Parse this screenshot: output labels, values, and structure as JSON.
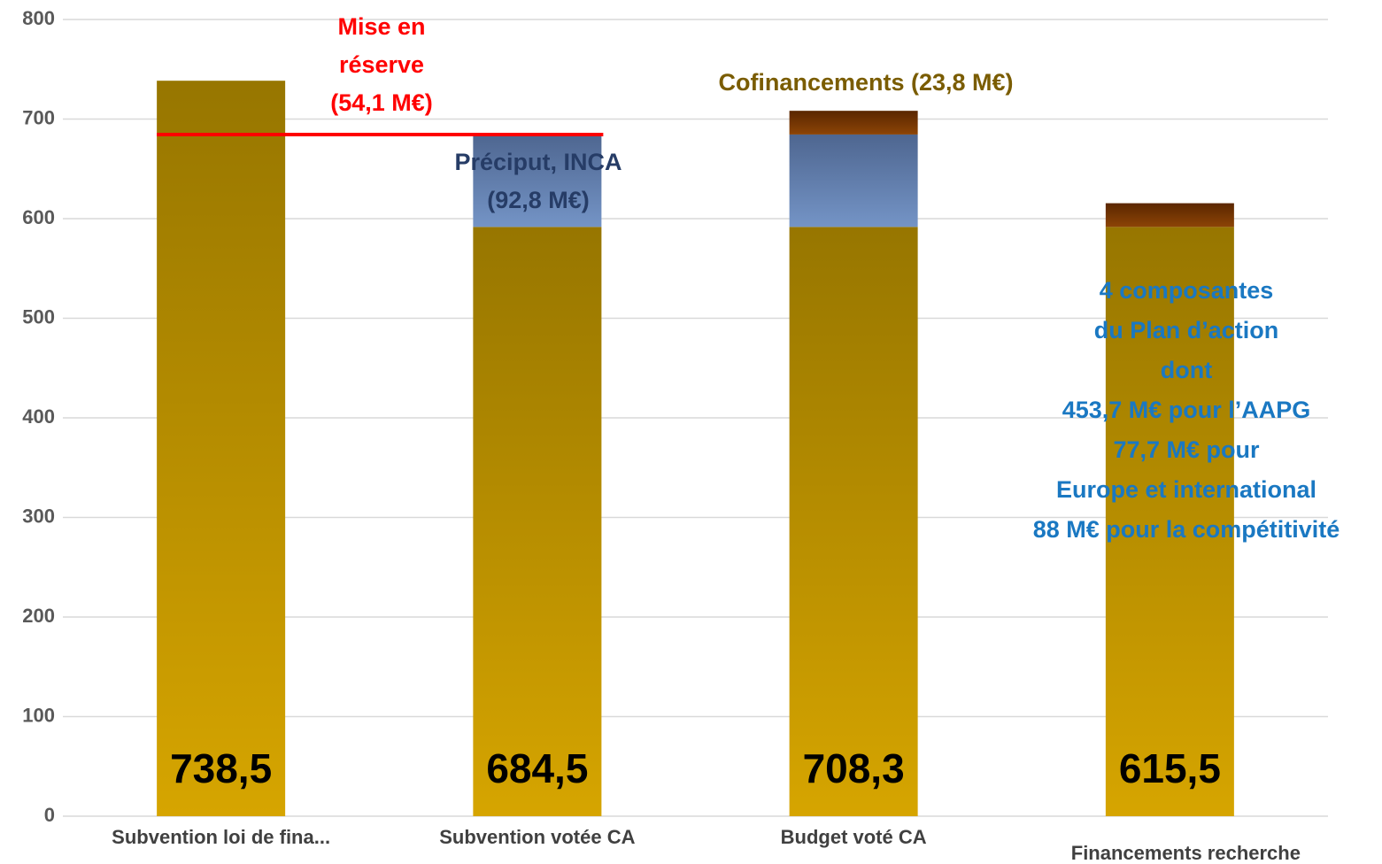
{
  "chart_data": {
    "type": "stacked-bar",
    "categories": [
      "Subvention loi de fina...",
      "Subvention votée CA",
      "Budget voté CA",
      "Financements recherche"
    ],
    "series": [
      {
        "color": "#b08c00",
        "values": [
          738.5,
          591.7,
          591.7,
          591.7
        ]
      },
      {
        "color": "#6482b4",
        "values": [
          null,
          92.8,
          92.8,
          null
        ]
      },
      {
        "color": "#7a3a05",
        "values": [
          null,
          null,
          23.8,
          23.8
        ]
      }
    ],
    "totals": [
      738.5,
      684.5,
      708.3,
      615.5
    ],
    "total_labels": [
      "738,5",
      "684,5",
      "708,3",
      "615,5"
    ],
    "reserve_line": {
      "value": 684.4,
      "color": "#ff0000"
    },
    "annotations": [
      {
        "lines": [
          "Mise en",
          "réserve",
          "(54,1 M€)"
        ],
        "color": "#ff0000"
      },
      {
        "lines": [
          "Préciput, INCA",
          "(92,8 M€)"
        ],
        "color": "#263c66"
      },
      {
        "lines": [
          "Cofinancements (23,8 M€)"
        ],
        "color": "#7a5c00"
      },
      {
        "lines": [
          "4 composantes",
          "du Plan d’action",
          "dont",
          "453,7 M€ pour l’AAPG",
          "77,7 M€ pour",
          "Europe et international",
          "88 M€ pour la compétitivité"
        ],
        "color": "#1a78c2"
      }
    ],
    "ylim": [
      0,
      800
    ],
    "yticks": [
      0,
      100,
      200,
      300,
      400,
      500,
      600,
      700,
      800
    ],
    "grid": true
  }
}
